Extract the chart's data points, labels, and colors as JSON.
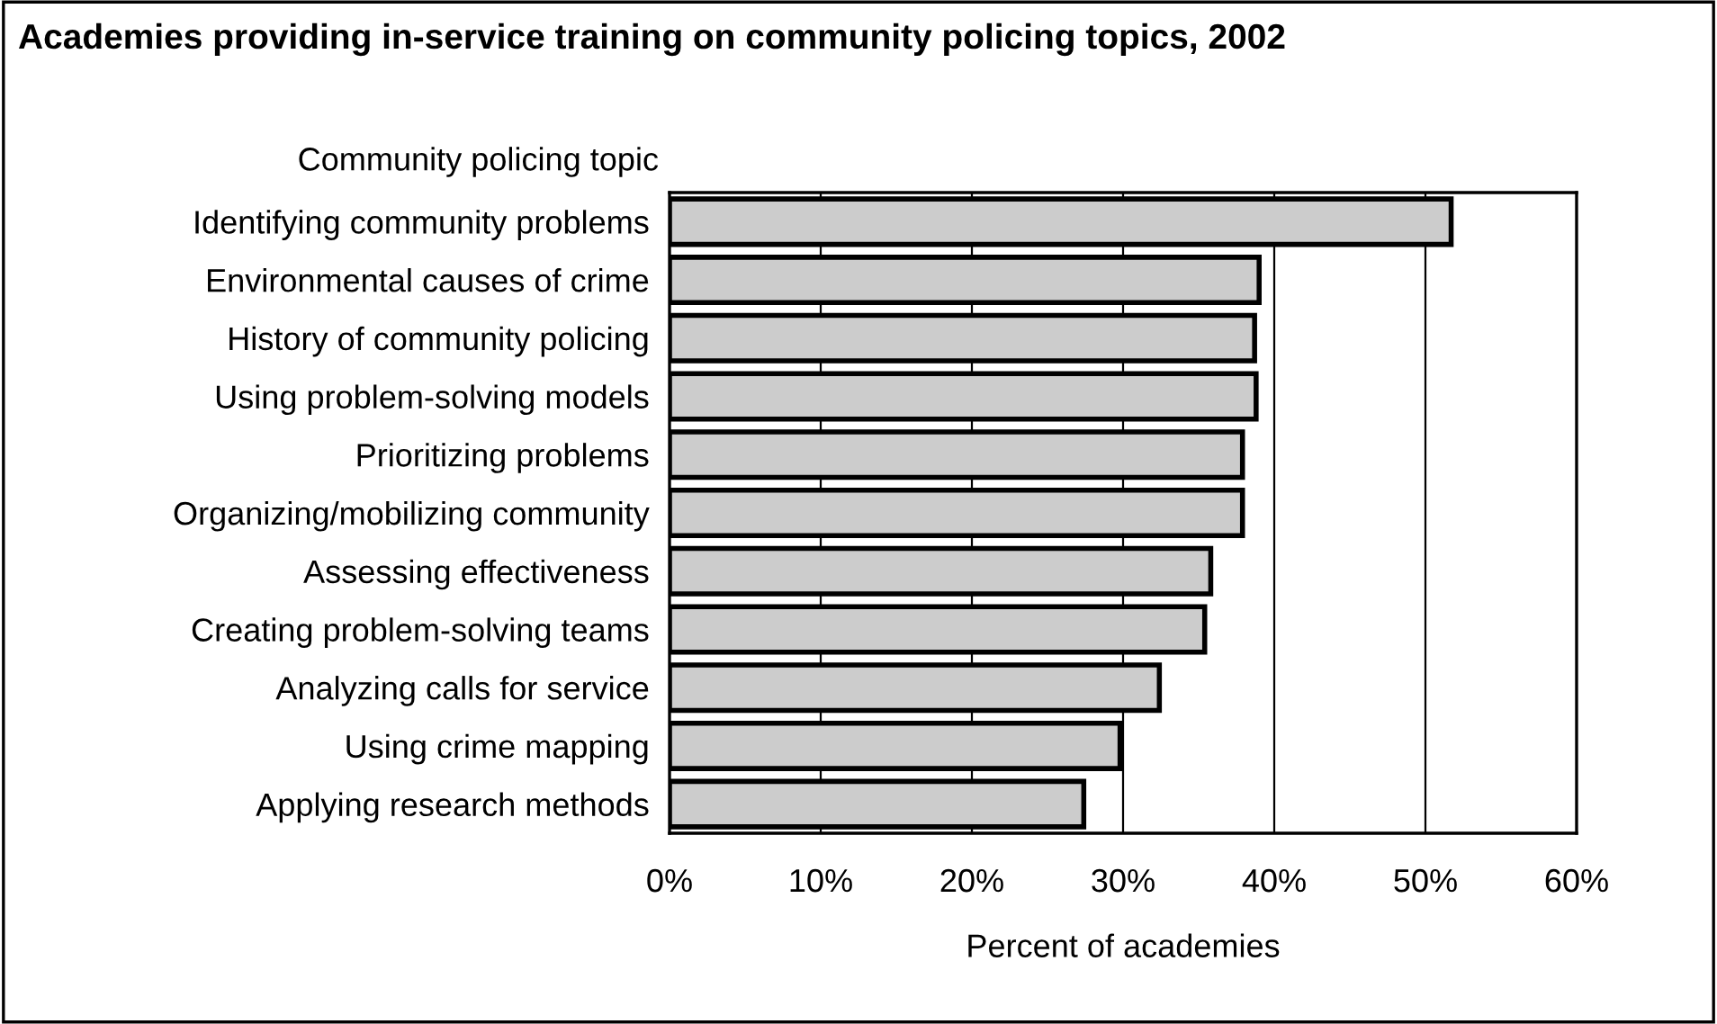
{
  "chart_data": {
    "type": "bar",
    "orientation": "horizontal",
    "title": "Academies providing in-service training on community policing topics, 2002",
    "ylabel": "Community policing topic",
    "xlabel": "Percent of academies",
    "categories": [
      "Identifying community problems",
      "Environmental causes of crime",
      "History of community policing",
      "Using problem-solving models",
      "Prioritizing problems",
      "Organizing/mobilizing community",
      "Assessing effectiveness",
      "Creating problem-solving teams",
      "Analyzing calls for service",
      "Using crime mapping",
      "Applying research methods"
    ],
    "values": [
      51.7,
      39.0,
      38.7,
      38.8,
      37.9,
      37.9,
      35.8,
      35.4,
      32.4,
      29.8,
      27.4
    ],
    "color": "#cccccc",
    "xlim": [
      0,
      60
    ],
    "xticks": [
      {
        "value": 0,
        "label": "0%"
      },
      {
        "value": 10,
        "label": "10%"
      },
      {
        "value": 20,
        "label": "20%"
      },
      {
        "value": 30,
        "label": "30%"
      },
      {
        "value": 40,
        "label": "40%"
      },
      {
        "value": 50,
        "label": "50%"
      },
      {
        "value": 60,
        "label": "60%"
      }
    ],
    "grid": "x"
  }
}
